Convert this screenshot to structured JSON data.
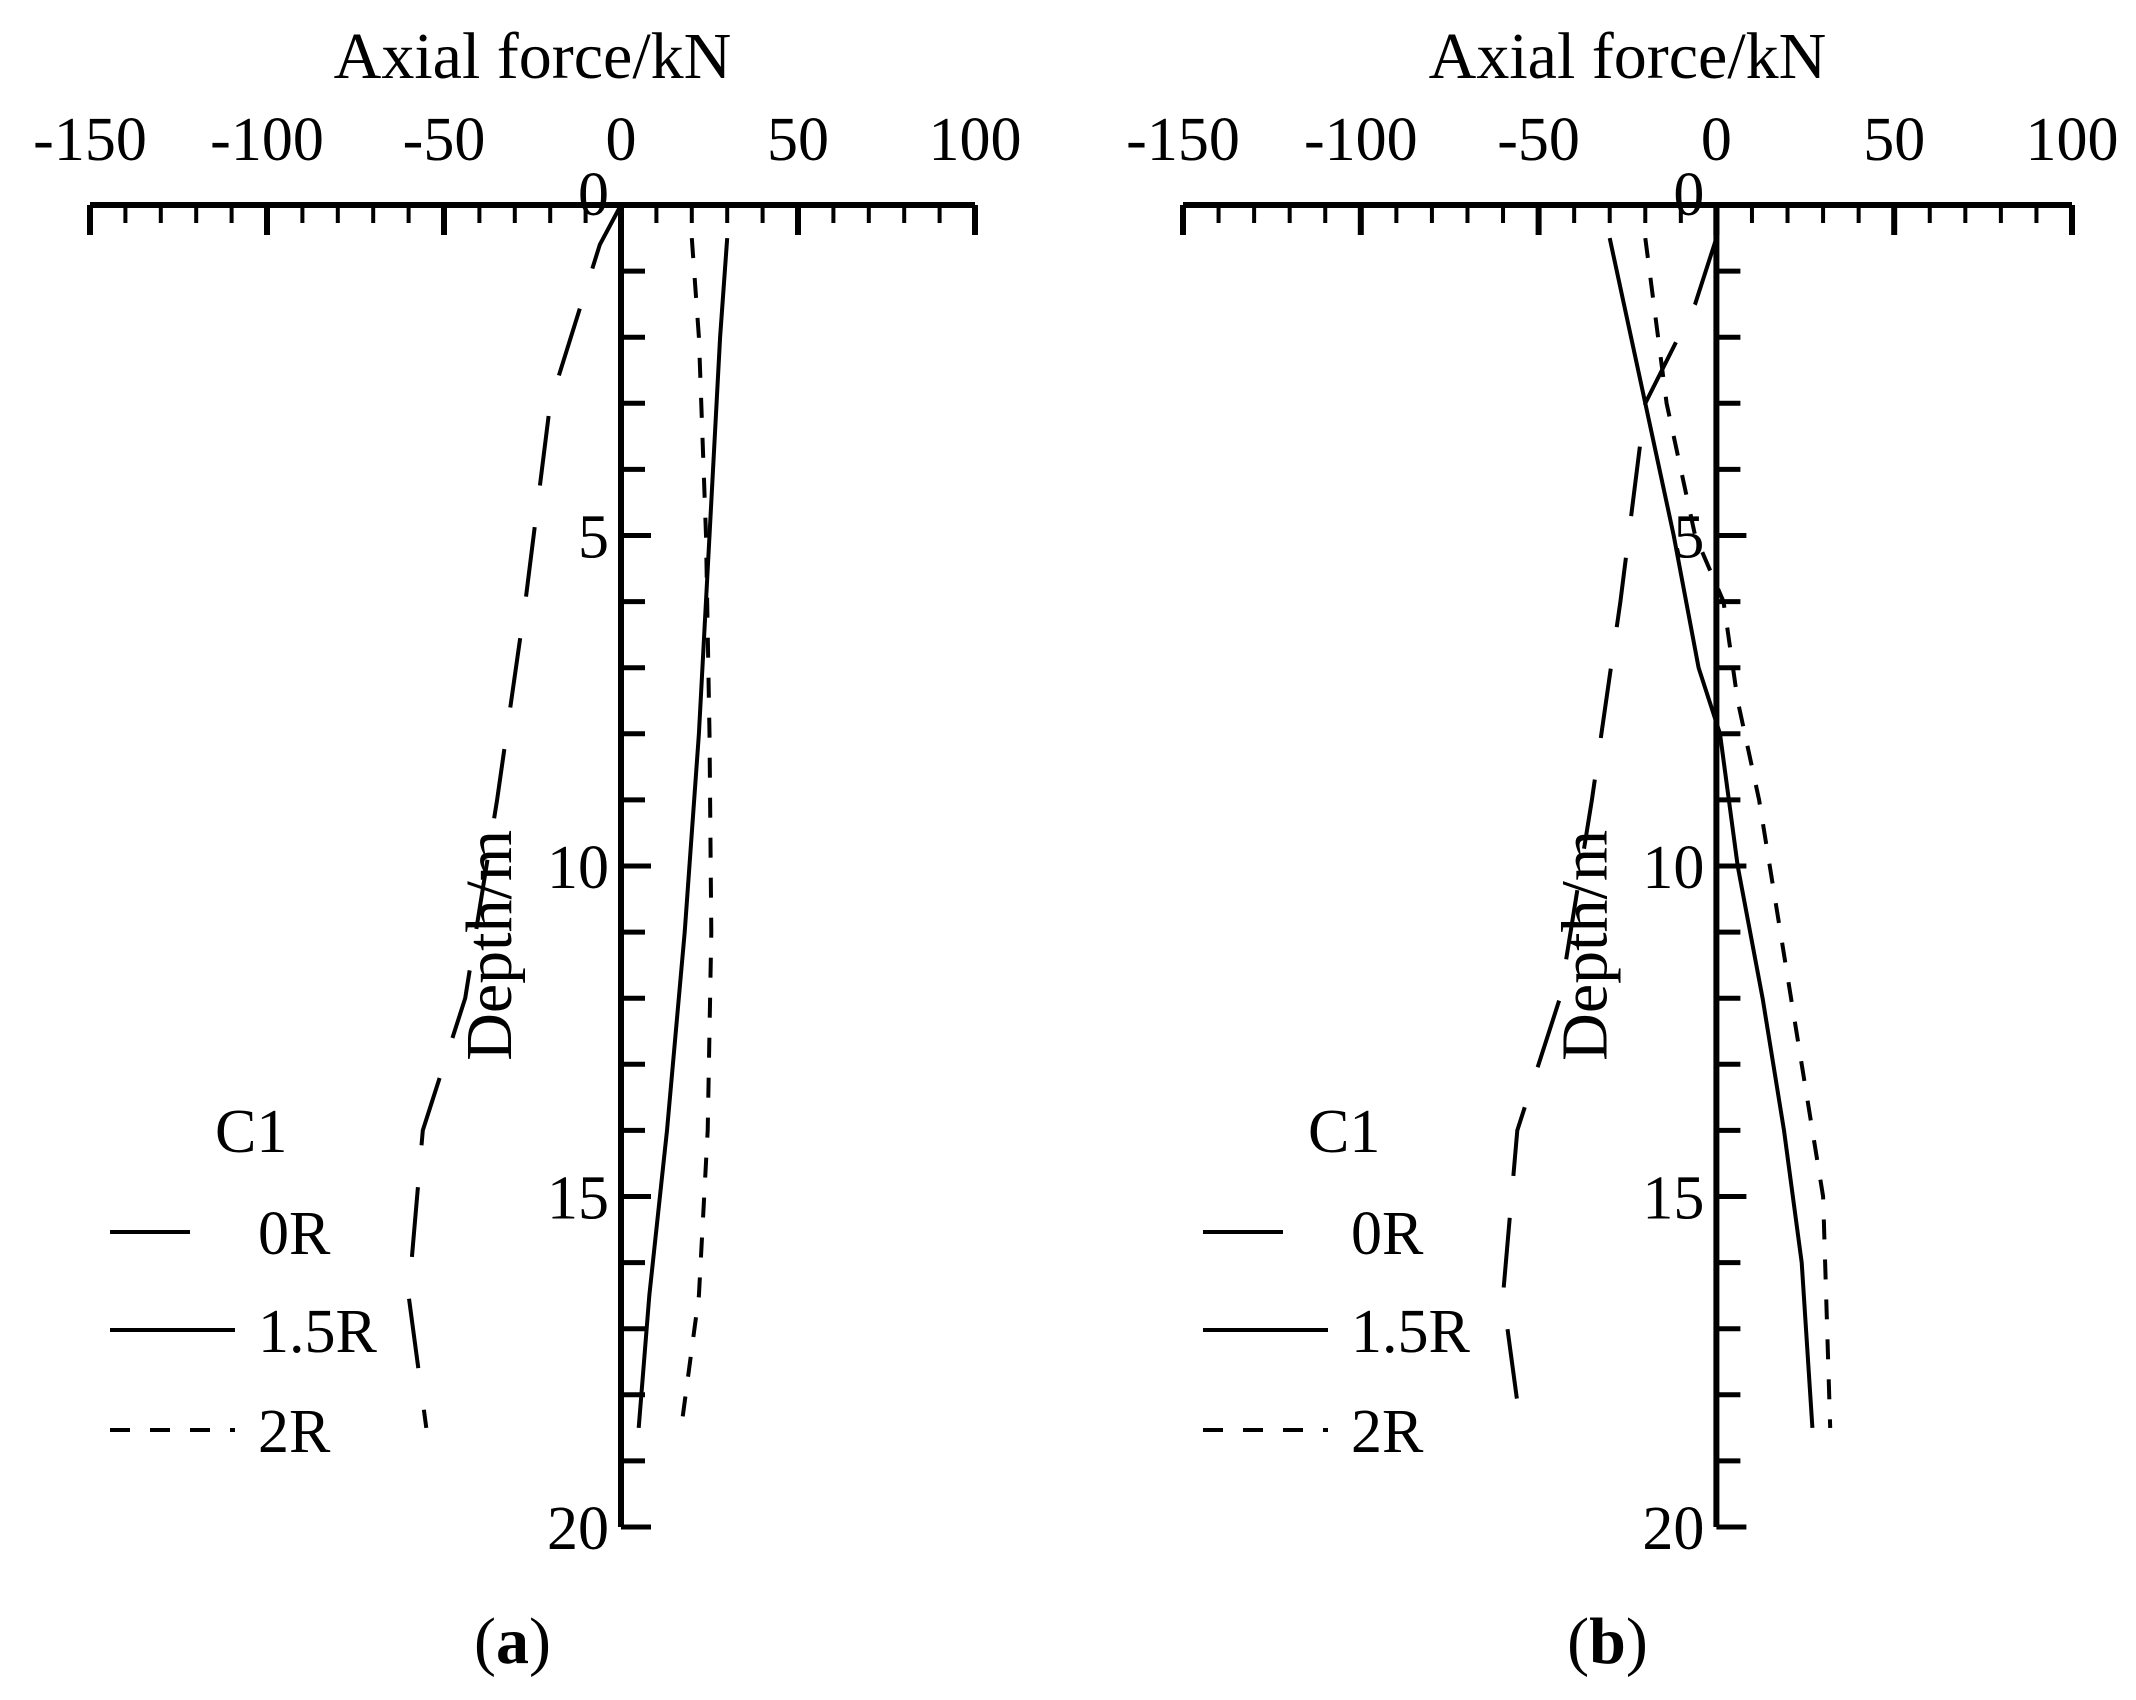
{
  "chart_data": [
    {
      "type": "line",
      "panel_label": "a",
      "xlabel": "Axial force/kN",
      "ylabel": "Depth/m",
      "xlim": [
        -150,
        100
      ],
      "ylim": [
        0,
        20
      ],
      "y_inverted": true,
      "x_axis_position": "top",
      "x_ticks": [
        -150,
        -100,
        -50,
        0,
        50,
        100
      ],
      "y_ticks": [
        0,
        5,
        10,
        15,
        20
      ],
      "legend_title": "C1",
      "legend_position": "bottom-left",
      "series": [
        {
          "name": "0R",
          "line_style": "long-dash",
          "points": [
            [
              0,
              0
            ],
            [
              -6,
              0.6
            ],
            [
              -20,
              3
            ],
            [
              -27,
              6
            ],
            [
              -35,
              9
            ],
            [
              -44,
              12
            ],
            [
              -56,
              14
            ],
            [
              -60,
              16.5
            ],
            [
              -55,
              18.5
            ]
          ]
        },
        {
          "name": "1.5R",
          "line_style": "solid",
          "points": [
            [
              30,
              0.5
            ],
            [
              28,
              2
            ],
            [
              25,
              5
            ],
            [
              22,
              8
            ],
            [
              18,
              11
            ],
            [
              13,
              14
            ],
            [
              8,
              16.5
            ],
            [
              5,
              18.5
            ]
          ]
        },
        {
          "name": "2R",
          "line_style": "short-dash",
          "points": [
            [
              20,
              0.5
            ],
            [
              22,
              2
            ],
            [
              24,
              5
            ],
            [
              25,
              8
            ],
            [
              25.5,
              11
            ],
            [
              24.5,
              14
            ],
            [
              22,
              16.5
            ],
            [
              17,
              18.5
            ]
          ]
        }
      ]
    },
    {
      "type": "line",
      "panel_label": "b",
      "xlabel": "Axial force/kN",
      "ylabel": "Depth/m",
      "xlim": [
        -150,
        100
      ],
      "ylim": [
        0,
        20
      ],
      "y_inverted": true,
      "x_axis_position": "top",
      "x_ticks": [
        -150,
        -100,
        -50,
        0,
        50,
        100
      ],
      "y_ticks": [
        0,
        5,
        10,
        15,
        20
      ],
      "legend_title": "C1",
      "legend_position": "bottom-left",
      "series": [
        {
          "name": "0R",
          "line_style": "long-dash",
          "points": [
            [
              0,
              0.5
            ],
            [
              -6,
              1.5
            ],
            [
              -20,
              3
            ],
            [
              -27,
              6
            ],
            [
              -35,
              9
            ],
            [
              -44,
              12
            ],
            [
              -56,
              14
            ],
            [
              -60,
              16.5
            ],
            [
              -55,
              18.5
            ]
          ]
        },
        {
          "name": "1.5R",
          "line_style": "solid",
          "points": [
            [
              -30,
              0.5
            ],
            [
              -20,
              3
            ],
            [
              -12,
              5
            ],
            [
              -5,
              7
            ],
            [
              1,
              8
            ],
            [
              6,
              10
            ],
            [
              13,
              12
            ],
            [
              19,
              14
            ],
            [
              24,
              16
            ],
            [
              27,
              18.5
            ]
          ]
        },
        {
          "name": "2R",
          "line_style": "short-dash",
          "points": [
            [
              -20,
              0.5
            ],
            [
              -14,
              3
            ],
            [
              -6,
              5
            ],
            [
              2,
              6
            ],
            [
              6,
              7.5
            ],
            [
              12,
              9
            ],
            [
              18,
              11
            ],
            [
              24,
              13
            ],
            [
              30,
              15
            ],
            [
              32,
              18.5
            ]
          ]
        }
      ]
    }
  ]
}
